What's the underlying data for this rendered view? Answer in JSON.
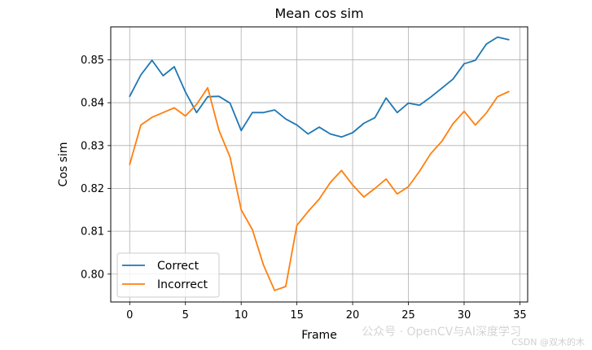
{
  "chart_data": {
    "type": "line",
    "title": "Mean cos sim",
    "xlabel": "Frame",
    "ylabel": "Cos sim",
    "xlim": [
      -1.7,
      35.7
    ],
    "ylim": [
      0.7935,
      0.8577
    ],
    "xticks": [
      0,
      5,
      10,
      15,
      20,
      25,
      30,
      35
    ],
    "xtick_labels": [
      "0",
      "5",
      "10",
      "15",
      "20",
      "25",
      "30",
      "35"
    ],
    "yticks": [
      0.8,
      0.81,
      0.82,
      0.83,
      0.84,
      0.85
    ],
    "ytick_labels": [
      "0.80",
      "0.81",
      "0.82",
      "0.83",
      "0.84",
      "0.85"
    ],
    "grid": true,
    "legend_position": "lower-left",
    "x": [
      0,
      1,
      2,
      3,
      4,
      5,
      6,
      7,
      8,
      9,
      10,
      11,
      12,
      13,
      14,
      15,
      16,
      17,
      18,
      19,
      20,
      21,
      22,
      23,
      24,
      25,
      26,
      27,
      28,
      29,
      30,
      31,
      32,
      33,
      34
    ],
    "series": [
      {
        "name": "Correct",
        "color": "#1f77b4",
        "values": [
          0.8415,
          0.8465,
          0.8499,
          0.8463,
          0.8484,
          0.8425,
          0.8377,
          0.8414,
          0.8415,
          0.8399,
          0.8335,
          0.8377,
          0.8377,
          0.8383,
          0.8362,
          0.8348,
          0.8327,
          0.8343,
          0.8327,
          0.832,
          0.833,
          0.8352,
          0.8365,
          0.8411,
          0.8377,
          0.8399,
          0.8394,
          0.8413,
          0.8434,
          0.8455,
          0.8491,
          0.8499,
          0.8537,
          0.8553,
          0.8547
        ]
      },
      {
        "name": "Incorrect",
        "color": "#ff7f0e",
        "values": [
          0.8256,
          0.8348,
          0.8366,
          0.8377,
          0.8388,
          0.8369,
          0.8396,
          0.8435,
          0.8336,
          0.8273,
          0.815,
          0.8104,
          0.8021,
          0.7962,
          0.7971,
          0.8114,
          0.8146,
          0.8175,
          0.8214,
          0.8242,
          0.8208,
          0.818,
          0.82,
          0.8222,
          0.8187,
          0.8204,
          0.824,
          0.8281,
          0.831,
          0.8351,
          0.838,
          0.8348,
          0.8376,
          0.8414,
          0.8426
        ]
      }
    ]
  },
  "watermark": {
    "main": "公众号 · OpenCV与AI深度学习",
    "credit": "CSDN @双木的木"
  }
}
